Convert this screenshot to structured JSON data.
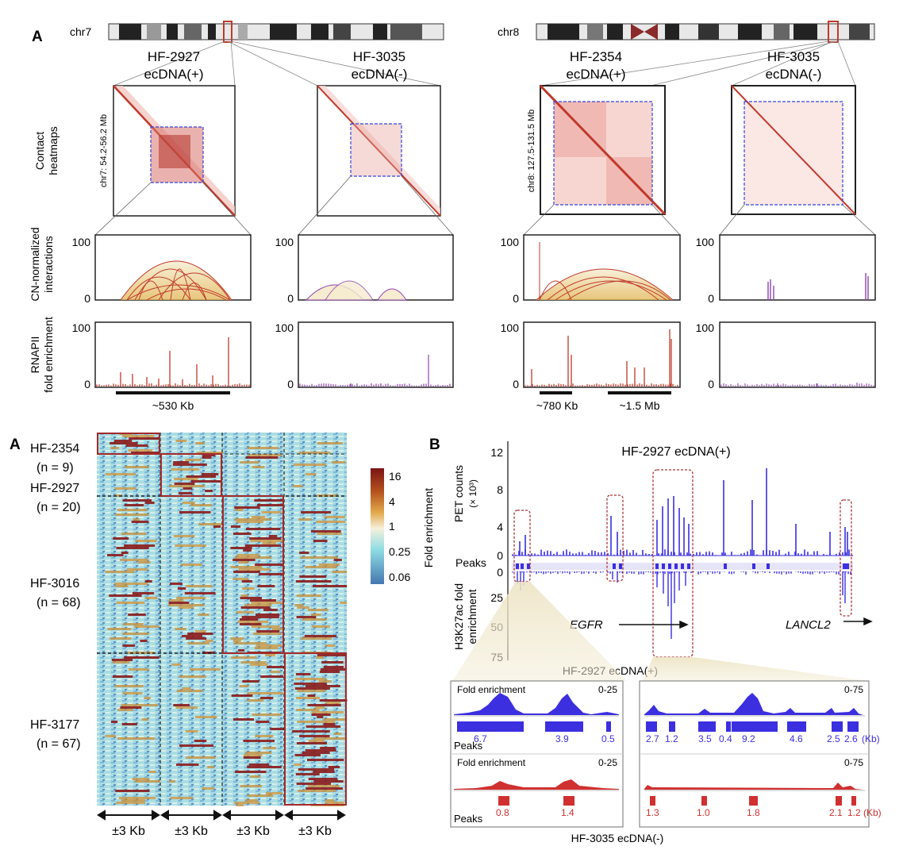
{
  "panel_a_top": {
    "panel_letter": "A",
    "left": {
      "chromosome": "chr7",
      "coord_label": "chr7: 54.2-56.2 Mb",
      "samples": [
        {
          "name": "HF-2927",
          "status": "ecDNA(+)",
          "color": "#c0392b"
        },
        {
          "name": "HF-3035",
          "status": "ecDNA(-)",
          "color": "#7d3c98"
        }
      ],
      "scale_bar": "~530 Kb"
    },
    "right": {
      "chromosome": "chr8",
      "coord_label": "chr8: 127.5-131.5 Mb",
      "samples": [
        {
          "name": "HF-2354",
          "status": "ecDNA(+)",
          "color": "#c0392b"
        },
        {
          "name": "HF-3035",
          "status": "ecDNA(-)",
          "color": "#7d3c98"
        }
      ],
      "scale_bars": [
        "~780 Kb",
        "~1.5 Mb"
      ]
    },
    "row_labels": {
      "heatmaps": [
        "Contact",
        "heatmaps"
      ],
      "interactions": [
        "CN-normalized",
        "interactions"
      ],
      "rnapii": [
        "RNAPII",
        "fold enrichment"
      ]
    },
    "axis_ticks": {
      "max": "100",
      "min": "0"
    }
  },
  "panel_a_bottom": {
    "panel_letter": "A",
    "groups": [
      {
        "name": "HF-2354",
        "n": "(n = 9)"
      },
      {
        "name": "HF-2927",
        "n": "(n = 20)"
      },
      {
        "name": "HF-3016",
        "n": "(n = 68)"
      },
      {
        "name": "HF-3177",
        "n": "(n = 67)"
      }
    ],
    "column_labels": [
      "±3 Kb",
      "±3 Kb",
      "±3 Kb",
      "±3 Kb"
    ],
    "legend": {
      "title": "Fold enrichment",
      "ticks": [
        "16",
        "4",
        "1",
        "0.25",
        "0.06"
      ],
      "colors": [
        "#8b1a1a",
        "#d2691e",
        "#f0e6c8",
        "#7fd0d8",
        "#4a7fb5"
      ]
    }
  },
  "panel_b": {
    "panel_letter": "B",
    "title": "HF-2927 ecDNA(+)",
    "ylabel_top": [
      "PET counts",
      "(× 10³)"
    ],
    "yticks_top": [
      "12",
      "8",
      "4",
      "0"
    ],
    "peaks_label": "Peaks",
    "ylabel_bottom": [
      "H3K27ac fold",
      "enrichment"
    ],
    "yticks_bottom": [
      "0",
      "25",
      "50",
      "75"
    ],
    "gene1": "EGFR",
    "gene2": "LANCL2",
    "xlabel": "HF-2927 ecDNA(+)",
    "blue": "#3b2fe0",
    "red": "#d03030",
    "zoom_left": {
      "track_label": "Fold enrichment",
      "range_top": "0-25",
      "peaks_top": [
        "6.7",
        "3.9",
        "0.5"
      ],
      "range_bottom": "0-25",
      "peaks_bottom": [
        "0.8",
        "1.4"
      ]
    },
    "zoom_right": {
      "range_top": "0-75",
      "peaks_top": [
        "2.7",
        "1.2",
        "3.5",
        "0.4",
        "9.2",
        "4.6",
        "2.5",
        "2.6",
        "(Kb)"
      ],
      "range_bottom": "0-75",
      "peaks_bottom": [
        "1.3",
        "1.0",
        "1.8",
        "2.1",
        "1.2",
        "(Kb)"
      ]
    },
    "bottom_label": "HF-3035 ecDNA(-)"
  }
}
